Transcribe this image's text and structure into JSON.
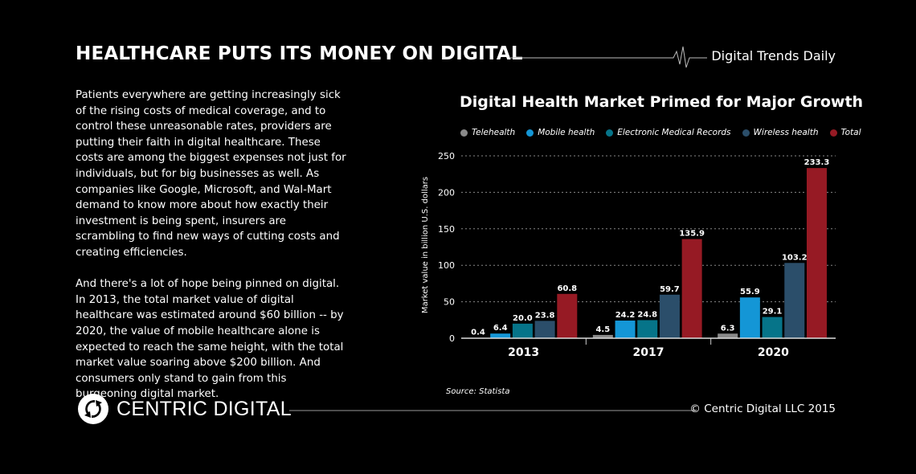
{
  "header": {
    "title": "HEALTHCARE PUTS ITS MONEY ON DIGITAL",
    "brand": "Digital Trends Daily"
  },
  "body": {
    "paragraphs": [
      "Patients everywhere are getting increasingly sick of the rising costs of medical coverage, and to control these unreasonable rates, providers are putting their faith in digital healthcare. These costs are among the biggest expenses not just for individuals, but for big businesses as well. As companies like Google, Microsoft, and Wal-Mart demand to know more about how exactly their investment is being spent, insurers are scrambling to find new ways of cutting costs and creating efficiencies.",
      "And there's a lot of hope being pinned on digital. In 2013, the total market value of digital healthcare was estimated around $60 billion -- by 2020, the value of mobile healthcare alone is expected to reach the same height, with the total market value soaring above $200 billion. And consumers only stand to gain from this burgeoning digital market."
    ]
  },
  "chart_data": {
    "type": "bar",
    "title": "Digital Health Market Primed for Major Growth",
    "ylabel": "Market value in billion U.S. dollars",
    "xlabel": "",
    "categories": [
      "2013",
      "2017",
      "2020"
    ],
    "ylim": [
      0,
      250
    ],
    "yticks": [
      0,
      50,
      100,
      150,
      200,
      250
    ],
    "grid": true,
    "legend_position": "top",
    "series": [
      {
        "name": "Telehealth",
        "color": "#8a8a8a",
        "values": [
          0.4,
          4.5,
          6.3
        ]
      },
      {
        "name": "Mobile health",
        "color": "#1496d6",
        "values": [
          6.4,
          24.2,
          55.9
        ]
      },
      {
        "name": "Electronic Medical Records",
        "color": "#067489",
        "values": [
          20.0,
          24.8,
          29.1
        ]
      },
      {
        "name": "Wireless health",
        "color": "#2b4e6a",
        "values": [
          23.8,
          59.7,
          103.2
        ]
      },
      {
        "name": "Total",
        "color": "#961a24",
        "values": [
          60.8,
          135.9,
          233.3
        ]
      }
    ],
    "source": "Source: Statista"
  },
  "footer": {
    "logo_text": "CENTRIC DIGITAL",
    "copyright": "© Centric Digital LLC 2015"
  }
}
